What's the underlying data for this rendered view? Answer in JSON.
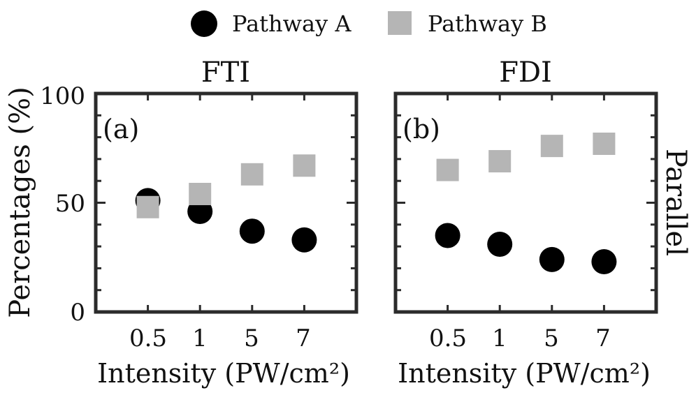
{
  "legend": {
    "position": "top-center",
    "series_a": {
      "label": "Pathway A",
      "color": "#000000",
      "marker": "circle"
    },
    "series_b": {
      "label": "Pathway B",
      "color": "#b5b5b5",
      "marker": "square"
    }
  },
  "row_label": "Parallel",
  "y_axis_label": "Percentages (%)",
  "chart_data": [
    {
      "type": "scatter",
      "title": "FTI",
      "panel_label": "(a)",
      "xlabel": "Intensity (PW/cm²)",
      "ylabel": "Percentages (%)",
      "categories": [
        "0.5",
        "1",
        "5",
        "7"
      ],
      "x_tick_labels": [
        "0.5",
        "1",
        "5",
        "7"
      ],
      "y_tick_labels": [
        "0",
        "50",
        "100"
      ],
      "y_ticks": [
        0,
        50,
        100
      ],
      "ylim": [
        0,
        100
      ],
      "xlim": [
        0,
        5
      ],
      "series": [
        {
          "name": "Pathway A",
          "values": [
            51,
            46,
            37,
            33
          ]
        },
        {
          "name": "Pathway B",
          "values": [
            48,
            54,
            63,
            67
          ]
        }
      ]
    },
    {
      "type": "scatter",
      "title": "FDI",
      "panel_label": "(b)",
      "xlabel": "Intensity (PW/cm²)",
      "ylabel": "",
      "categories": [
        "0.5",
        "1",
        "5",
        "7"
      ],
      "x_tick_labels": [
        "0.5",
        "1",
        "5",
        "7"
      ],
      "y_tick_labels": [],
      "y_ticks": [
        0,
        50,
        100
      ],
      "ylim": [
        0,
        100
      ],
      "xlim": [
        0,
        5
      ],
      "series": [
        {
          "name": "Pathway A",
          "values": [
            35,
            31,
            24,
            23
          ]
        },
        {
          "name": "Pathway B",
          "values": [
            65,
            69,
            76,
            77
          ]
        }
      ]
    }
  ]
}
